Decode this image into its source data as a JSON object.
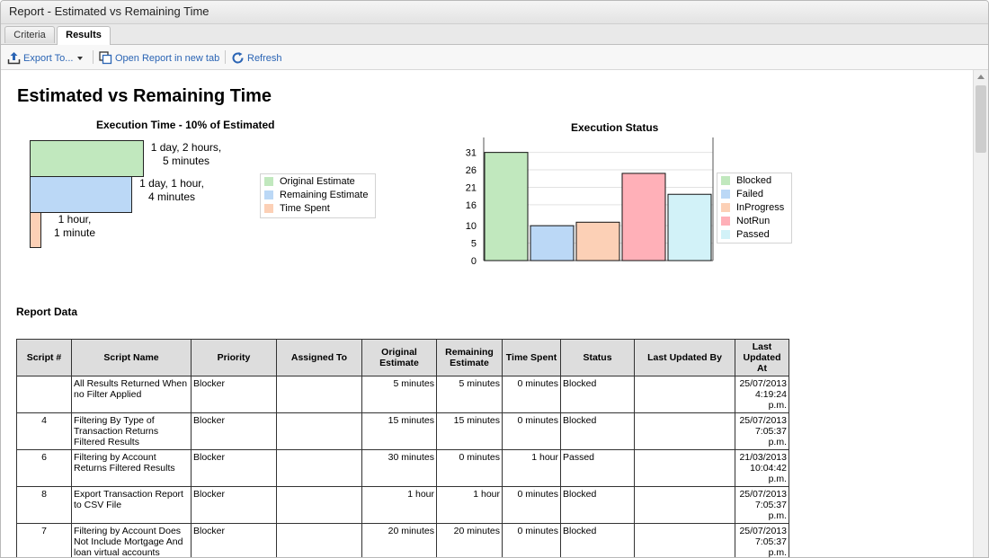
{
  "window": {
    "title": "Report - Estimated vs Remaining Time"
  },
  "tabs": [
    {
      "label": "Criteria"
    },
    {
      "label": "Results"
    }
  ],
  "toolbar": {
    "export_label": "Export To...",
    "open_tab_label": "Open Report in new tab",
    "refresh_label": "Refresh"
  },
  "report": {
    "title": "Estimated vs Remaining Time",
    "data_heading": "Report Data"
  },
  "exec_time_chart": {
    "title": "Execution Time - 10% of Estimated",
    "bars": [
      {
        "label_line1": "1 day, 2 hours,",
        "label_line2": "5 minutes",
        "color": "#c1e8be"
      },
      {
        "label_line1": "1 day, 1 hour,",
        "label_line2": "4 minutes",
        "color": "#bbd8f6"
      },
      {
        "label_line1": "1 hour,",
        "label_line2": "1 minute",
        "color": "#fcd0b6"
      }
    ],
    "legend": [
      {
        "label": "Original Estimate",
        "color": "#c1e8be"
      },
      {
        "label": "Remaining Estimate",
        "color": "#bbd8f6"
      },
      {
        "label": "Time Spent",
        "color": "#fcd0b6"
      }
    ]
  },
  "chart_data": {
    "type": "bar",
    "title": "Execution Status",
    "categories": [
      "Blocked",
      "Failed",
      "InProgress",
      "NotRun",
      "Passed"
    ],
    "values": [
      31,
      10,
      11,
      25,
      19
    ],
    "colors": [
      "#c1e8be",
      "#bbd8f6",
      "#fcd0b6",
      "#ffb0b8",
      "#d2f2f8"
    ],
    "y_ticks": [
      "31",
      "26",
      "21",
      "16",
      "10",
      "5",
      "0"
    ],
    "ylim": [
      0,
      34
    ],
    "grid": true,
    "legend_position": "right"
  },
  "table": {
    "headers": [
      "Script #",
      "Script Name",
      "Priority",
      "Assigned To",
      "Original Estimate",
      "Remaining Estimate",
      "Time Spent",
      "Status",
      "Last Updated By",
      "Last Updated At"
    ],
    "rows": [
      {
        "script": "",
        "name": "All Results Returned When no Filter Applied",
        "priority": "Blocker",
        "assigned": "",
        "orig": "5 minutes",
        "rem": "5 minutes",
        "spent": "0 minutes",
        "status": "Blocked",
        "by": "",
        "at": "25/07/2013 4:19:24 p.m."
      },
      {
        "script": "4",
        "name": "Filtering By Type of Transaction Returns Filtered Results",
        "priority": "Blocker",
        "assigned": "",
        "orig": "15 minutes",
        "rem": "15 minutes",
        "spent": "0 minutes",
        "status": "Blocked",
        "by": "",
        "at": "25/07/2013 7:05:37 p.m."
      },
      {
        "script": "6",
        "name": "Filtering by Account Returns Filtered Results",
        "priority": "Blocker",
        "assigned": "",
        "orig": "30 minutes",
        "rem": "0 minutes",
        "spent": "1 hour",
        "status": "Passed",
        "by": "",
        "at": "21/03/2013 10:04:42 p.m."
      },
      {
        "script": "8",
        "name": "Export Transaction Report to CSV File",
        "priority": "Blocker",
        "assigned": "",
        "orig": "1 hour",
        "rem": "1 hour",
        "spent": "0 minutes",
        "status": "Blocked",
        "by": "",
        "at": "25/07/2013 7:05:37 p.m."
      },
      {
        "script": "7",
        "name": "Filtering by Account Does Not Include Mortgage And loan virtual accounts",
        "priority": "Blocker",
        "assigned": "",
        "orig": "20 minutes",
        "rem": "20 minutes",
        "spent": "0 minutes",
        "status": "Blocked",
        "by": "",
        "at": "25/07/2013 7:05:37 p.m."
      }
    ]
  }
}
